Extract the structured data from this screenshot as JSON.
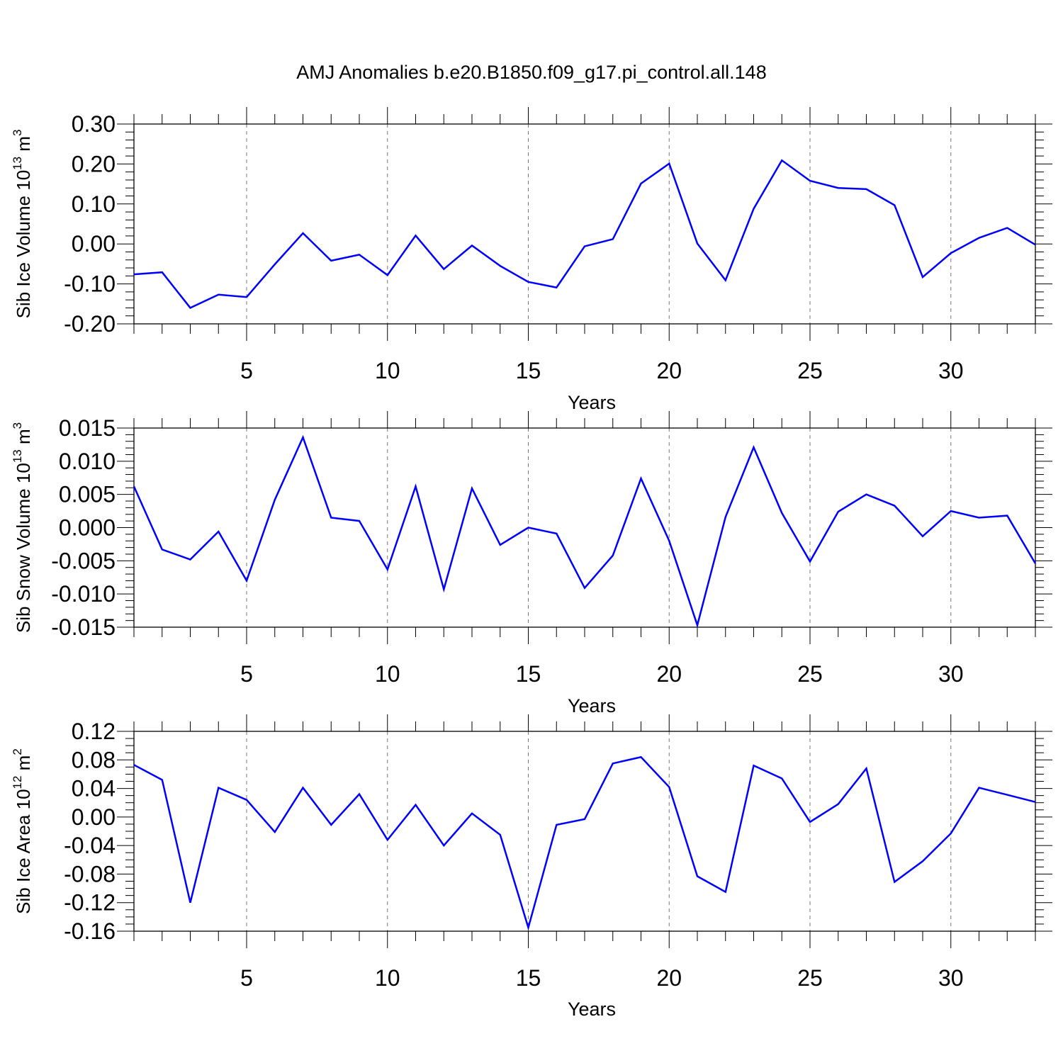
{
  "title": "AMJ Anomalies b.e20.B1850.f09_g17.pi_control.all.148",
  "line_color": "#0000ff",
  "chart_data": [
    {
      "type": "line",
      "xlabel": "Years",
      "ylabel": {
        "text": "Sib Ice Volume 10",
        "exp": "13",
        "unit": " m",
        "unit_exp": "3"
      },
      "xlim": [
        1,
        33
      ],
      "ylim": [
        -0.2,
        0.3
      ],
      "grid_x": true,
      "grid_y": false,
      "x_ticks": [
        5,
        10,
        15,
        20,
        25,
        30
      ],
      "x_tick_labels": [
        "5",
        "10",
        "15",
        "20",
        "25",
        "30"
      ],
      "y_ticks": [
        -0.2,
        -0.1,
        0.0,
        0.1,
        0.2,
        0.3
      ],
      "y_tick_labels": [
        "-0.20",
        "-0.10",
        "0.00",
        "0.10",
        "0.20",
        "0.30"
      ],
      "y_minor_step": 0.02,
      "x": [
        1,
        2,
        3,
        4,
        5,
        6,
        7,
        8,
        9,
        10,
        11,
        12,
        13,
        14,
        15,
        16,
        17,
        18,
        19,
        20,
        21,
        22,
        23,
        24,
        25,
        26,
        27,
        28,
        29,
        30,
        31,
        32,
        33
      ],
      "values": [
        -0.076,
        -0.071,
        -0.16,
        -0.127,
        -0.133,
        -0.051,
        0.027,
        -0.042,
        -0.027,
        -0.078,
        0.021,
        -0.063,
        -0.004,
        -0.055,
        -0.095,
        -0.109,
        -0.006,
        0.012,
        0.151,
        0.201,
        0.001,
        -0.091,
        0.088,
        0.209,
        0.158,
        0.14,
        0.137,
        0.097,
        -0.083,
        -0.023,
        0.015,
        0.04,
        -0.002
      ]
    },
    {
      "type": "line",
      "xlabel": "Years",
      "ylabel": {
        "text": "Sib Snow Volume 10",
        "exp": "13",
        "unit": " m",
        "unit_exp": "3"
      },
      "xlim": [
        1,
        33
      ],
      "ylim": [
        -0.015,
        0.015
      ],
      "grid_x": true,
      "grid_y": false,
      "x_ticks": [
        5,
        10,
        15,
        20,
        25,
        30
      ],
      "x_tick_labels": [
        "5",
        "10",
        "15",
        "20",
        "25",
        "30"
      ],
      "y_ticks": [
        -0.015,
        -0.01,
        -0.005,
        0.0,
        0.005,
        0.01,
        0.015
      ],
      "y_tick_labels": [
        "-0.015",
        "-0.010",
        "-0.005",
        "0.000",
        "0.005",
        "0.010",
        "0.015"
      ],
      "y_minor_step": 0.001,
      "x": [
        1,
        2,
        3,
        4,
        5,
        6,
        7,
        8,
        9,
        10,
        11,
        12,
        13,
        14,
        15,
        16,
        17,
        18,
        19,
        20,
        21,
        22,
        23,
        24,
        25,
        26,
        27,
        28,
        29,
        30,
        31,
        32,
        33
      ],
      "values": [
        0.0062,
        -0.0033,
        -0.0048,
        -0.0006,
        -0.008,
        0.0042,
        0.0136,
        0.0015,
        0.001,
        -0.0063,
        0.0062,
        -0.0093,
        0.0059,
        -0.0026,
        0.0,
        -0.0009,
        -0.0091,
        -0.0042,
        0.0074,
        -0.002,
        -0.0147,
        0.0016,
        0.0121,
        0.0022,
        -0.0051,
        0.0024,
        0.005,
        0.0033,
        -0.0013,
        0.0025,
        0.0015,
        0.0018,
        -0.0054
      ]
    },
    {
      "type": "line",
      "xlabel": "Years",
      "ylabel": {
        "text": "Sib Ice Area 10",
        "exp": "12",
        "unit": " m",
        "unit_exp": "2"
      },
      "xlim": [
        1,
        33
      ],
      "ylim": [
        -0.16,
        0.12
      ],
      "grid_x": true,
      "grid_y": false,
      "x_ticks": [
        5,
        10,
        15,
        20,
        25,
        30
      ],
      "x_tick_labels": [
        "5",
        "10",
        "15",
        "20",
        "25",
        "30"
      ],
      "y_ticks": [
        -0.16,
        -0.12,
        -0.08,
        -0.04,
        0.0,
        0.04,
        0.08,
        0.12
      ],
      "y_tick_labels": [
        "-0.16",
        "-0.12",
        "-0.08",
        "-0.04",
        "0.00",
        "0.04",
        "0.08",
        "0.12"
      ],
      "y_minor_step": 0.01,
      "x": [
        1,
        2,
        3,
        4,
        5,
        6,
        7,
        8,
        9,
        10,
        11,
        12,
        13,
        14,
        15,
        16,
        17,
        18,
        19,
        20,
        21,
        22,
        23,
        24,
        25,
        26,
        27,
        28,
        29,
        30,
        31,
        32,
        33
      ],
      "values": [
        0.073,
        0.052,
        -0.12,
        0.041,
        0.024,
        -0.021,
        0.041,
        -0.011,
        0.032,
        -0.032,
        0.017,
        -0.04,
        0.005,
        -0.025,
        -0.155,
        -0.011,
        -0.003,
        0.075,
        0.084,
        0.042,
        -0.083,
        -0.105,
        0.072,
        0.054,
        -0.007,
        0.018,
        0.068,
        -0.091,
        -0.062,
        -0.023,
        0.041,
        0.031,
        0.021
      ]
    }
  ]
}
